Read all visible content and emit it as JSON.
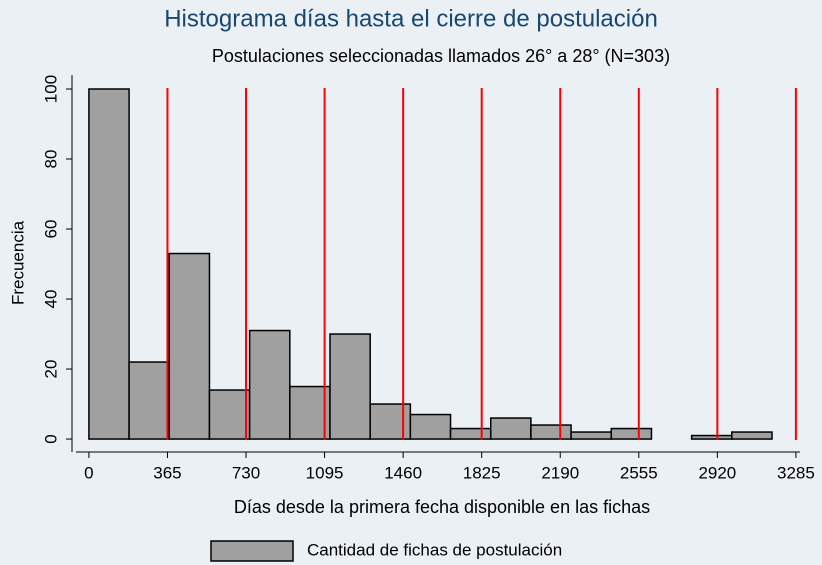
{
  "chart_data": {
    "type": "histogram",
    "title": "Histograma días hasta el cierre de postulación",
    "subtitle": "Postulaciones seleccionadas llamados 26° a 28° (N=303)",
    "x_label": "Días desde la primera fecha disponible en las fichas",
    "y_label": "Frecuencia",
    "series": [
      {
        "name": "Cantidad de fichas de postulación",
        "color": "#a0a0a0",
        "bins": [
          0,
          186.7,
          373.4,
          560.1,
          746.8,
          933.5,
          1120.2,
          1306.9,
          1493.6,
          1680.3,
          1867,
          2053.7,
          2240.4,
          2427.1,
          2613.8,
          2800.5,
          2987.2,
          3173.9
        ],
        "values": [
          100,
          22,
          53,
          14,
          31,
          15,
          30,
          10,
          7,
          3,
          6,
          4,
          2,
          3,
          0,
          1,
          2
        ]
      }
    ],
    "reference_lines": [
      365,
      730,
      1095,
      1460,
      1825,
      2190,
      2555,
      2920,
      3285
    ],
    "reference_line_color": "#ff0000",
    "xlim": [
      -60,
      3304
    ],
    "xticks": [
      0,
      365,
      730,
      1095,
      1460,
      1825,
      2190,
      2555,
      2920,
      3285
    ],
    "ylim": [
      -3.7,
      104
    ],
    "yticks": [
      0,
      20,
      40,
      60,
      80,
      100
    ],
    "legend": "bottom"
  }
}
